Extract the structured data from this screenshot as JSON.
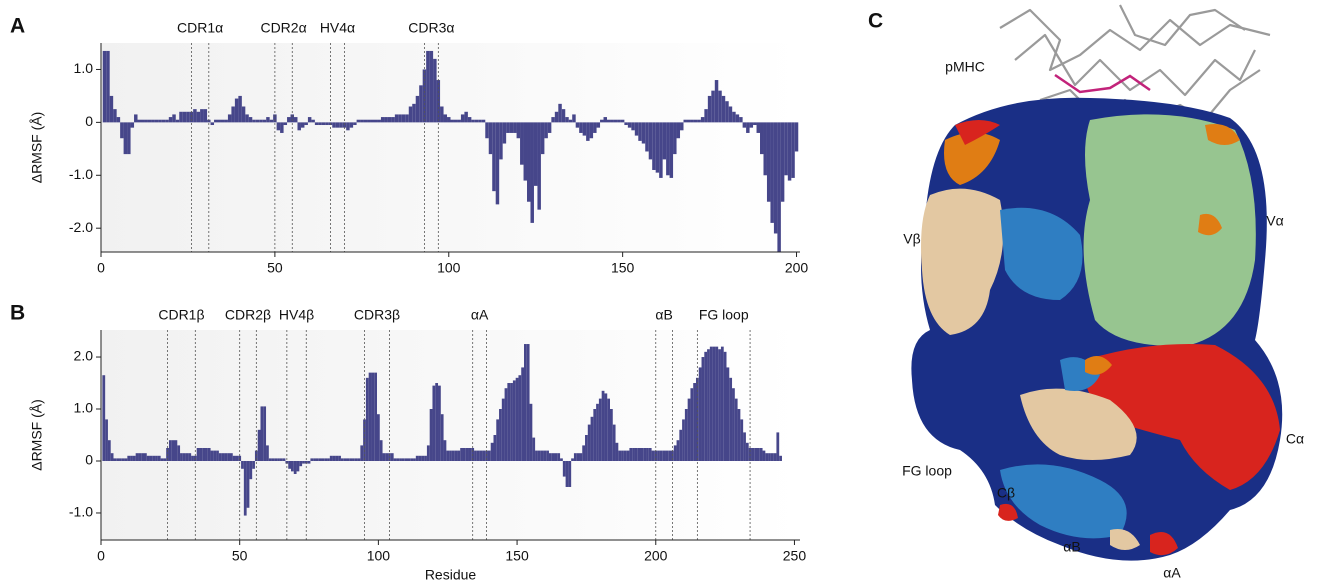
{
  "chart_data": [
    {
      "type": "bar",
      "panel": "A",
      "ylabel": "ΔRMSF (Å)",
      "color": "#46468a",
      "x": [
        1,
        2,
        3,
        4,
        5,
        6,
        7,
        8,
        9,
        10,
        11,
        12,
        13,
        14,
        15,
        16,
        17,
        18,
        19,
        20,
        21,
        22,
        23,
        24,
        25,
        26,
        27,
        28,
        29,
        30,
        31,
        32,
        33,
        34,
        35,
        36,
        37,
        38,
        39,
        40,
        41,
        42,
        43,
        44,
        45,
        46,
        47,
        48,
        49,
        50,
        51,
        52,
        53,
        54,
        55,
        56,
        57,
        58,
        59,
        60,
        61,
        62,
        63,
        64,
        65,
        66,
        67,
        68,
        69,
        70,
        71,
        72,
        73,
        74,
        75,
        76,
        77,
        78,
        79,
        80,
        81,
        82,
        83,
        84,
        85,
        86,
        87,
        88,
        89,
        90,
        91,
        92,
        93,
        94,
        95,
        96,
        97,
        98,
        99,
        100,
        101,
        102,
        103,
        104,
        105,
        106,
        107,
        108,
        109,
        110,
        111,
        112,
        113,
        114,
        115,
        116,
        117,
        118,
        119,
        120,
        121,
        122,
        123,
        124,
        125,
        126,
        127,
        128,
        129,
        130,
        131,
        132,
        133,
        134,
        135,
        136,
        137,
        138,
        139,
        140,
        141,
        142,
        143,
        144,
        145,
        146,
        147,
        148,
        149,
        150,
        151,
        152,
        153,
        154,
        155,
        156,
        157,
        158,
        159,
        160,
        161,
        162,
        163,
        164,
        165,
        166,
        167,
        168,
        169,
        170,
        171,
        172,
        173,
        174,
        175,
        176,
        177,
        178,
        179,
        180,
        181,
        182,
        183,
        184,
        185,
        186,
        187,
        188,
        189,
        190,
        191,
        192,
        193,
        194,
        195,
        196,
        197,
        198,
        199,
        200
      ],
      "values": [
        1.35,
        1.35,
        0.5,
        0.25,
        0.1,
        -0.3,
        -0.6,
        -0.6,
        -0.1,
        0.15,
        0.05,
        0.05,
        0.05,
        0.05,
        0.05,
        0.05,
        0.05,
        0.05,
        0.05,
        0.1,
        0.15,
        0.05,
        0.2,
        0.2,
        0.2,
        0.2,
        0.25,
        0.2,
        0.25,
        0.25,
        0.05,
        -0.05,
        0.05,
        0.05,
        0.05,
        0.05,
        0.15,
        0.3,
        0.45,
        0.5,
        0.3,
        0.15,
        0.1,
        0.05,
        0.05,
        0.05,
        0.05,
        0.1,
        0.05,
        0.15,
        -0.15,
        -0.2,
        -0.05,
        0.1,
        0.15,
        0.1,
        -0.15,
        -0.1,
        -0.05,
        0.1,
        0.05,
        -0.05,
        -0.05,
        -0.05,
        -0.05,
        -0.05,
        -0.1,
        -0.1,
        -0.1,
        -0.1,
        -0.15,
        -0.1,
        -0.05,
        0.05,
        0.05,
        0.05,
        0.05,
        0.05,
        0.05,
        0.05,
        0.1,
        0.1,
        0.1,
        0.1,
        0.15,
        0.15,
        0.15,
        0.15,
        0.3,
        0.35,
        0.5,
        0.7,
        1.0,
        1.35,
        1.35,
        1.2,
        0.8,
        0.3,
        0.15,
        0.1,
        0.05,
        0.05,
        0.05,
        0.15,
        0.2,
        0.1,
        0.05,
        0.05,
        0.05,
        0.05,
        -0.3,
        -0.6,
        -1.3,
        -1.55,
        -0.7,
        -0.4,
        -0.2,
        -0.2,
        -0.2,
        -0.3,
        -0.8,
        -1.1,
        -1.5,
        -1.9,
        -1.2,
        -1.65,
        -0.6,
        -0.3,
        -0.2,
        0.1,
        0.2,
        0.35,
        0.25,
        0.1,
        0.05,
        0.15,
        -0.1,
        -0.2,
        -0.25,
        -0.35,
        -0.3,
        -0.2,
        -0.1,
        0.05,
        0.1,
        0.05,
        0.05,
        0.05,
        0.05,
        0.05,
        -0.05,
        -0.1,
        -0.15,
        -0.25,
        -0.35,
        -0.4,
        -0.55,
        -0.7,
        -0.9,
        -0.95,
        -1.05,
        -0.7,
        -1.0,
        -1.05,
        -0.6,
        -0.3,
        -0.15,
        0.05,
        0.05,
        0.05,
        0.05,
        0.05,
        0.1,
        0.25,
        0.5,
        0.6,
        0.8,
        0.6,
        0.5,
        0.4,
        0.3,
        0.2,
        0.15,
        0.1,
        -0.1,
        -0.2,
        -0.1,
        -0.05,
        -0.2,
        -0.6,
        -1.0,
        -1.5,
        -1.9,
        -2.1,
        -2.45,
        -1.5,
        -1.0,
        -1.1,
        -1.05,
        -0.55
      ],
      "xlim": [
        0,
        201
      ],
      "ylim": [
        -2.45,
        1.5
      ],
      "xticks": [
        0,
        50,
        100,
        150,
        200
      ],
      "yticks": [
        {
          "value": 1,
          "label": "1.0"
        },
        0,
        {
          "value": -1,
          "label": "-1.0"
        },
        {
          "value": -2,
          "label": "-2.0"
        }
      ],
      "regions": [
        {
          "label": "CDR1α",
          "start": 26,
          "end": 31
        },
        {
          "label": "CDR2α",
          "start": 50,
          "end": 55
        },
        {
          "label": "HV4α",
          "start": 66,
          "end": 70
        },
        {
          "label": "CDR3α",
          "start": 93,
          "end": 97
        }
      ]
    },
    {
      "type": "bar",
      "panel": "B",
      "ylabel": "ΔRMSF (Å)",
      "xlabel": "Residue",
      "color": "#46468a",
      "x": [
        1,
        2,
        3,
        4,
        5,
        6,
        7,
        8,
        9,
        10,
        11,
        12,
        13,
        14,
        15,
        16,
        17,
        18,
        19,
        20,
        21,
        22,
        23,
        24,
        25,
        26,
        27,
        28,
        29,
        30,
        31,
        32,
        33,
        34,
        35,
        36,
        37,
        38,
        39,
        40,
        41,
        42,
        43,
        44,
        45,
        46,
        47,
        48,
        49,
        50,
        51,
        52,
        53,
        54,
        55,
        56,
        57,
        58,
        59,
        60,
        61,
        62,
        63,
        64,
        65,
        66,
        67,
        68,
        69,
        70,
        71,
        72,
        73,
        74,
        75,
        76,
        77,
        78,
        79,
        80,
        81,
        82,
        83,
        84,
        85,
        86,
        87,
        88,
        89,
        90,
        91,
        92,
        93,
        94,
        95,
        96,
        97,
        98,
        99,
        100,
        101,
        102,
        103,
        104,
        105,
        106,
        107,
        108,
        109,
        110,
        111,
        112,
        113,
        114,
        115,
        116,
        117,
        118,
        119,
        120,
        121,
        122,
        123,
        124,
        125,
        126,
        127,
        128,
        129,
        130,
        131,
        132,
        133,
        134,
        135,
        136,
        137,
        138,
        139,
        140,
        141,
        142,
        143,
        144,
        145,
        146,
        147,
        148,
        149,
        150,
        151,
        152,
        153,
        154,
        155,
        156,
        157,
        158,
        159,
        160,
        161,
        162,
        163,
        164,
        165,
        166,
        167,
        168,
        169,
        170,
        171,
        172,
        173,
        174,
        175,
        176,
        177,
        178,
        179,
        180,
        181,
        182,
        183,
        184,
        185,
        186,
        187,
        188,
        189,
        190,
        191,
        192,
        193,
        194,
        195,
        196,
        197,
        198,
        199,
        200,
        201,
        202,
        203,
        204,
        205,
        206,
        207,
        208,
        209,
        210,
        211,
        212,
        213,
        214,
        215,
        216,
        217,
        218,
        219,
        220,
        221,
        222,
        223,
        224,
        225,
        226,
        227,
        228,
        229,
        230,
        231,
        232,
        233,
        234,
        235,
        236,
        237,
        238,
        239,
        240,
        241,
        242,
        243,
        244,
        245
      ],
      "values": [
        1.65,
        0.8,
        0.4,
        0.15,
        0.05,
        0.05,
        0.05,
        0.05,
        0.05,
        0.1,
        0.1,
        0.1,
        0.15,
        0.15,
        0.15,
        0.15,
        0.1,
        0.1,
        0.1,
        0.1,
        0.1,
        0.05,
        0.05,
        0.25,
        0.4,
        0.4,
        0.4,
        0.3,
        0.15,
        0.15,
        0.15,
        0.15,
        0.1,
        0.1,
        0.25,
        0.25,
        0.25,
        0.25,
        0.25,
        0.2,
        0.2,
        0.2,
        0.15,
        0.15,
        0.15,
        0.15,
        0.15,
        0.1,
        0.1,
        0.1,
        -0.15,
        -1.05,
        -0.9,
        -0.35,
        -0.15,
        0.2,
        0.6,
        1.05,
        1.05,
        0.3,
        0.05,
        0.05,
        0.05,
        0.05,
        0.05,
        0.05,
        -0.05,
        -0.15,
        -0.2,
        -0.25,
        -0.2,
        -0.1,
        -0.05,
        -0.05,
        -0.05,
        0.05,
        0.05,
        0.05,
        0.05,
        0.05,
        0.05,
        0.05,
        0.1,
        0.1,
        0.1,
        0.1,
        0.05,
        0.05,
        0.05,
        0.05,
        0.05,
        0.05,
        0.05,
        0.3,
        0.8,
        1.6,
        1.7,
        1.7,
        1.7,
        0.9,
        0.4,
        0.15,
        0.15,
        0.15,
        0.15,
        0.05,
        0.05,
        0.05,
        0.05,
        0.05,
        0.05,
        0.05,
        0.05,
        0.1,
        0.1,
        0.1,
        0.1,
        0.3,
        1.0,
        1.45,
        1.5,
        1.45,
        0.9,
        0.4,
        0.2,
        0.2,
        0.2,
        0.2,
        0.2,
        0.25,
        0.25,
        0.25,
        0.25,
        0.25,
        0.2,
        0.2,
        0.2,
        0.2,
        0.2,
        0.2,
        0.35,
        0.5,
        0.8,
        1.0,
        1.2,
        1.4,
        1.5,
        1.5,
        1.55,
        1.6,
        1.65,
        1.8,
        2.25,
        2.25,
        1.1,
        0.45,
        0.2,
        0.2,
        0.2,
        0.2,
        0.2,
        0.15,
        0.15,
        0.15,
        0.15,
        0.05,
        -0.3,
        -0.5,
        -0.5,
        0.05,
        0.15,
        0.15,
        0.15,
        0.3,
        0.5,
        0.7,
        0.85,
        1.0,
        1.1,
        1.2,
        1.35,
        1.3,
        1.2,
        1.0,
        0.7,
        0.35,
        0.2,
        0.2,
        0.2,
        0.2,
        0.25,
        0.25,
        0.25,
        0.25,
        0.25,
        0.25,
        0.25,
        0.25,
        0.2,
        0.2,
        0.2,
        0.2,
        0.2,
        0.2,
        0.2,
        0.2,
        0.3,
        0.4,
        0.6,
        0.8,
        1.0,
        1.2,
        1.4,
        1.5,
        1.6,
        1.8,
        2.0,
        2.1,
        2.15,
        2.2,
        2.2,
        2.2,
        2.15,
        2.2,
        2.1,
        1.8,
        1.6,
        1.4,
        1.2,
        1.0,
        0.8,
        0.55,
        0.35,
        0.25,
        0.25,
        0.25,
        0.25,
        0.25,
        0.2,
        0.15,
        0.15,
        0.15,
        0.15,
        0.55,
        0.1
      ],
      "xlim": [
        0,
        252
      ],
      "ylim": [
        -1.52,
        2.52
      ],
      "xticks": [
        0,
        50,
        100,
        150,
        200,
        250
      ],
      "yticks": [
        {
          "value": 2,
          "label": "2.0"
        },
        {
          "value": 1,
          "label": "1.0"
        },
        0,
        {
          "value": -1,
          "label": "-1.0"
        }
      ],
      "regions": [
        {
          "label": "CDR1β",
          "start": 24,
          "end": 34
        },
        {
          "label": "CDR2β",
          "start": 50,
          "end": 56
        },
        {
          "label": "HV4β",
          "start": 67,
          "end": 74
        },
        {
          "label": "CDR3β",
          "start": 95,
          "end": 104
        },
        {
          "label": "αA",
          "start": 134,
          "end": 139
        },
        {
          "label": "αB",
          "start": 200,
          "end": 206
        },
        {
          "label": "FG loop",
          "start": 215,
          "end": 234
        }
      ]
    }
  ],
  "structure": {
    "panel": "C",
    "labels": [
      "pMHC",
      "Vβ",
      "Vα",
      "FG loop",
      "Cβ",
      "Cα",
      "αB",
      "αA"
    ]
  }
}
